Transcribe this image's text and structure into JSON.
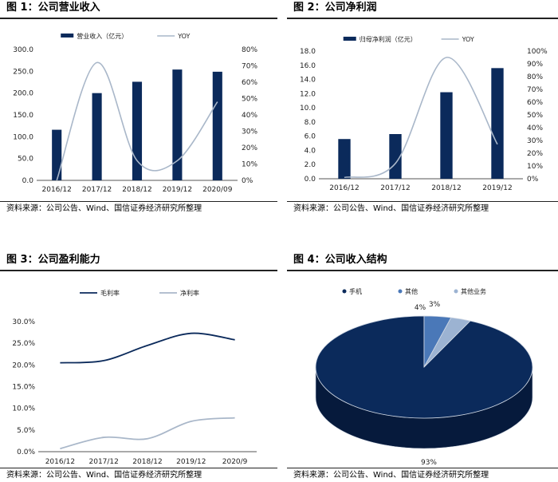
{
  "charts": {
    "fig1": {
      "title": "图 1：公司营业收入",
      "source": "资料来源：公司公告、Wind、国信证券经济研究所整理",
      "chart_data": {
        "type": "bar",
        "categories": [
          "2016/12",
          "2017/12",
          "2018/12",
          "2019/12",
          "2020/09"
        ],
        "series": [
          {
            "name": "营业收入（亿元）",
            "type": "bar",
            "axis": "left",
            "color": "#0b2a5b",
            "values": [
              116,
              200,
              226,
              254,
              249
            ]
          },
          {
            "name": "YOY",
            "type": "line",
            "axis": "right",
            "color": "#a9b7c9",
            "values": [
              0.0,
              0.72,
              0.12,
              0.12,
              0.48
            ]
          }
        ],
        "yticks": [
          "0.0",
          "50.0",
          "100.0",
          "150.0",
          "200.0",
          "250.0",
          "300.0"
        ],
        "y2ticks": [
          "0%",
          "10%",
          "20%",
          "30%",
          "40%",
          "50%",
          "60%",
          "70%",
          "80%"
        ],
        "ylim": [
          0,
          300
        ],
        "y2lim": [
          0,
          0.8
        ],
        "legend": "top"
      }
    },
    "fig2": {
      "title": "图 2：公司净利润",
      "source": "资料来源：公司公告、Wind、国信证券经济研究所整理",
      "chart_data": {
        "type": "bar",
        "categories": [
          "2016/12",
          "2017/12",
          "2018/12",
          "2019/12"
        ],
        "series": [
          {
            "name": "归母净利润（亿元）",
            "type": "bar",
            "axis": "left",
            "color": "#0b2a5b",
            "values": [
              5.6,
              6.3,
              12.2,
              15.6
            ]
          },
          {
            "name": "YOY",
            "type": "line",
            "axis": "right",
            "color": "#a9b7c9",
            "values": [
              0.01,
              0.12,
              0.95,
              0.27
            ]
          }
        ],
        "yticks": [
          "0.0",
          "2.0",
          "4.0",
          "6.0",
          "8.0",
          "10.0",
          "12.0",
          "14.0",
          "16.0",
          "18.0"
        ],
        "y2ticks": [
          "0%",
          "10%",
          "20%",
          "30%",
          "40%",
          "50%",
          "60%",
          "70%",
          "80%",
          "90%",
          "100%"
        ],
        "ylim": [
          0,
          18
        ],
        "y2lim": [
          0,
          1.0
        ],
        "legend": "top"
      }
    },
    "fig3": {
      "title": "图 3：公司盈利能力",
      "source": "资料来源：公司公告、Wind、国信证券经济研究所整理",
      "chart_data": {
        "type": "line",
        "categories": [
          "2016/12",
          "2017/12",
          "2018/12",
          "2019/12",
          "2020/9"
        ],
        "series": [
          {
            "name": "毛利率",
            "color": "#0b2a5b",
            "values": [
              0.205,
              0.21,
              0.245,
              0.273,
              0.258
            ]
          },
          {
            "name": "净利率",
            "color": "#a9b7c9",
            "values": [
              0.007,
              0.033,
              0.03,
              0.07,
              0.078
            ]
          }
        ],
        "yticks": [
          "0.0%",
          "5.0%",
          "10.0%",
          "15.0%",
          "20.0%",
          "25.0%",
          "30.0%"
        ],
        "ylim": [
          0,
          0.3
        ],
        "legend": "top"
      }
    },
    "fig4": {
      "title": "图 4：公司收入结构",
      "source": "资料来源：公司公告、Wind、国信证券经济研究所整理",
      "chart_data": {
        "type": "pie",
        "categories": [
          "手机",
          "其他",
          "其他业务"
        ],
        "values": [
          93,
          4,
          3
        ],
        "labels": [
          "93%",
          "4%",
          "3%"
        ],
        "colors": [
          "#0b2a5b",
          "#4a78b8",
          "#9cb3d2"
        ],
        "legend": "top"
      }
    }
  }
}
